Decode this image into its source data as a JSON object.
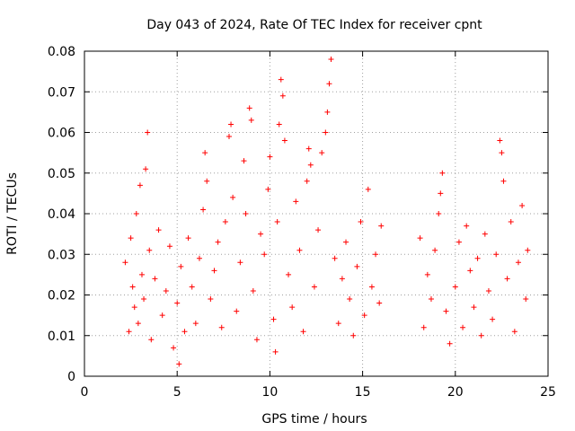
{
  "chart_data": {
    "type": "scatter",
    "title": "Day 043 of 2024, Rate Of TEC Index for receiver cpnt",
    "xlabel": "GPS time / hours",
    "ylabel": "ROTI / TECUs",
    "xlim": [
      0,
      25
    ],
    "ylim": [
      0,
      0.08
    ],
    "x_ticks": [
      "0",
      "5",
      "10",
      "15",
      "20",
      "25"
    ],
    "x_tick_values": [
      0,
      5,
      10,
      15,
      20,
      25
    ],
    "y_ticks": [
      "0",
      "0.01",
      "0.02",
      "0.03",
      "0.04",
      "0.05",
      "0.06",
      "0.07",
      "0.08"
    ],
    "y_tick_values": [
      0,
      0.01,
      0.02,
      0.03,
      0.04,
      0.05,
      0.06,
      0.07,
      0.08
    ],
    "grid": true,
    "marker": "plus",
    "color": "#ff0000",
    "series": [
      {
        "name": "ROTI",
        "points": [
          [
            2.2,
            0.028
          ],
          [
            2.4,
            0.011
          ],
          [
            2.5,
            0.034
          ],
          [
            2.6,
            0.022
          ],
          [
            2.7,
            0.017
          ],
          [
            2.8,
            0.04
          ],
          [
            2.9,
            0.013
          ],
          [
            3.0,
            0.047
          ],
          [
            3.1,
            0.025
          ],
          [
            3.2,
            0.019
          ],
          [
            3.3,
            0.051
          ],
          [
            3.4,
            0.06
          ],
          [
            3.5,
            0.031
          ],
          [
            3.6,
            0.009
          ],
          [
            3.8,
            0.024
          ],
          [
            4.0,
            0.036
          ],
          [
            4.2,
            0.015
          ],
          [
            4.4,
            0.021
          ],
          [
            4.6,
            0.032
          ],
          [
            4.8,
            0.007
          ],
          [
            5.0,
            0.018
          ],
          [
            5.1,
            0.003
          ],
          [
            5.2,
            0.027
          ],
          [
            5.4,
            0.011
          ],
          [
            5.6,
            0.034
          ],
          [
            5.8,
            0.022
          ],
          [
            6.0,
            0.013
          ],
          [
            6.2,
            0.029
          ],
          [
            6.4,
            0.041
          ],
          [
            6.5,
            0.055
          ],
          [
            6.6,
            0.048
          ],
          [
            6.8,
            0.019
          ],
          [
            7.0,
            0.026
          ],
          [
            7.2,
            0.033
          ],
          [
            7.4,
            0.012
          ],
          [
            7.6,
            0.038
          ],
          [
            7.8,
            0.059
          ],
          [
            7.9,
            0.062
          ],
          [
            8.0,
            0.044
          ],
          [
            8.2,
            0.016
          ],
          [
            8.4,
            0.028
          ],
          [
            8.6,
            0.053
          ],
          [
            8.7,
            0.04
          ],
          [
            8.9,
            0.066
          ],
          [
            9.0,
            0.063
          ],
          [
            9.1,
            0.021
          ],
          [
            9.3,
            0.009
          ],
          [
            9.5,
            0.035
          ],
          [
            9.7,
            0.03
          ],
          [
            9.9,
            0.046
          ],
          [
            10.0,
            0.054
          ],
          [
            10.2,
            0.014
          ],
          [
            10.3,
            0.006
          ],
          [
            10.4,
            0.038
          ],
          [
            10.5,
            0.062
          ],
          [
            10.6,
            0.073
          ],
          [
            10.7,
            0.069
          ],
          [
            10.8,
            0.058
          ],
          [
            11.0,
            0.025
          ],
          [
            11.2,
            0.017
          ],
          [
            11.4,
            0.043
          ],
          [
            11.6,
            0.031
          ],
          [
            11.8,
            0.011
          ],
          [
            12.0,
            0.048
          ],
          [
            12.1,
            0.056
          ],
          [
            12.2,
            0.052
          ],
          [
            12.4,
            0.022
          ],
          [
            12.6,
            0.036
          ],
          [
            12.8,
            0.055
          ],
          [
            13.0,
            0.06
          ],
          [
            13.1,
            0.065
          ],
          [
            13.2,
            0.072
          ],
          [
            13.3,
            0.078
          ],
          [
            13.5,
            0.029
          ],
          [
            13.7,
            0.013
          ],
          [
            13.9,
            0.024
          ],
          [
            14.1,
            0.033
          ],
          [
            14.3,
            0.019
          ],
          [
            14.5,
            0.01
          ],
          [
            14.7,
            0.027
          ],
          [
            14.9,
            0.038
          ],
          [
            15.1,
            0.015
          ],
          [
            15.3,
            0.046
          ],
          [
            15.5,
            0.022
          ],
          [
            15.7,
            0.03
          ],
          [
            15.9,
            0.018
          ],
          [
            16.0,
            0.037
          ],
          [
            18.1,
            0.034
          ],
          [
            18.3,
            0.012
          ],
          [
            18.5,
            0.025
          ],
          [
            18.7,
            0.019
          ],
          [
            18.9,
            0.031
          ],
          [
            19.1,
            0.04
          ],
          [
            19.2,
            0.045
          ],
          [
            19.3,
            0.05
          ],
          [
            19.5,
            0.016
          ],
          [
            19.7,
            0.008
          ],
          [
            20.0,
            0.022
          ],
          [
            20.2,
            0.033
          ],
          [
            20.4,
            0.012
          ],
          [
            20.6,
            0.037
          ],
          [
            20.8,
            0.026
          ],
          [
            21.0,
            0.017
          ],
          [
            21.2,
            0.029
          ],
          [
            21.4,
            0.01
          ],
          [
            21.6,
            0.035
          ],
          [
            21.8,
            0.021
          ],
          [
            22.0,
            0.014
          ],
          [
            22.2,
            0.03
          ],
          [
            22.4,
            0.058
          ],
          [
            22.5,
            0.055
          ],
          [
            22.6,
            0.048
          ],
          [
            22.8,
            0.024
          ],
          [
            23.0,
            0.038
          ],
          [
            23.2,
            0.011
          ],
          [
            23.4,
            0.028
          ],
          [
            23.6,
            0.042
          ],
          [
            23.8,
            0.019
          ],
          [
            23.9,
            0.031
          ]
        ]
      }
    ]
  }
}
